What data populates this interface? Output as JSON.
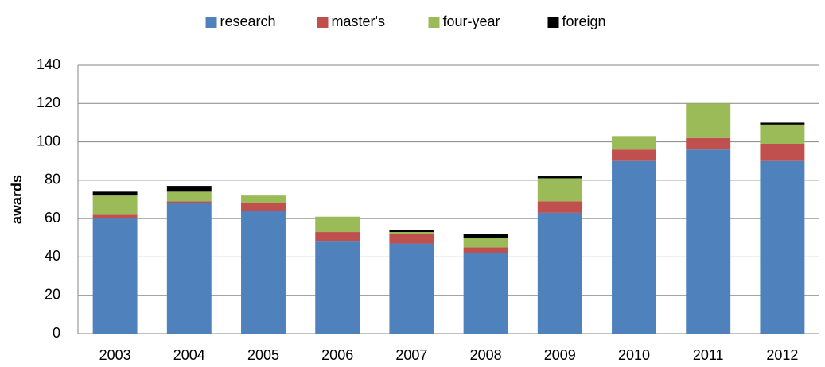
{
  "chart_data": {
    "type": "stacked_bar",
    "y_label": "awards",
    "categories": [
      "2003",
      "2004",
      "2005",
      "2006",
      "2007",
      "2008",
      "2009",
      "2010",
      "2011",
      "2012"
    ],
    "series": [
      {
        "name": "research",
        "color": "#4f81bd",
        "values": [
          60,
          68,
          64,
          48,
          47,
          42,
          63,
          90,
          96,
          90
        ]
      },
      {
        "name": "master's",
        "color": "#c0504d",
        "values": [
          2,
          1,
          4,
          5,
          5,
          3,
          6,
          6,
          6,
          9
        ]
      },
      {
        "name": "four-year",
        "color": "#9bbb59",
        "values": [
          10,
          5,
          4,
          8,
          1,
          5,
          12,
          7,
          18,
          10
        ]
      },
      {
        "name": "foreign",
        "color": "#000000",
        "values": [
          2,
          3,
          0,
          0,
          1,
          2,
          1,
          0,
          0,
          1
        ]
      }
    ],
    "ylim": [
      0,
      140
    ],
    "yticks": [
      0,
      20,
      40,
      60,
      80,
      100,
      120,
      140
    ],
    "grid": true,
    "legend": "top"
  }
}
